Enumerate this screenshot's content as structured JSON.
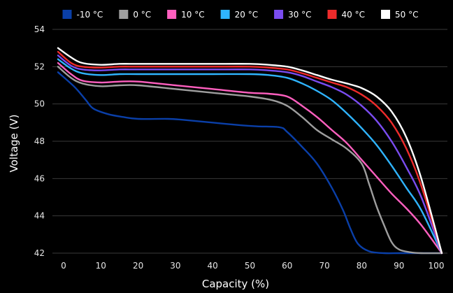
{
  "chart_data": {
    "type": "line",
    "title": "",
    "xlabel": "Capacity (%)",
    "ylabel": "Voltage (V)",
    "xlim": [
      -3,
      103
    ],
    "ylim": [
      42,
      54
    ],
    "xticks": [
      0,
      10,
      20,
      30,
      40,
      50,
      60,
      70,
      80,
      90,
      100
    ],
    "yticks": [
      42,
      44,
      46,
      48,
      50,
      52,
      54
    ],
    "grid": "horizontal",
    "legend_position": "top",
    "background": "#000000",
    "series": [
      {
        "name": "-10 °C",
        "color": "#0a3fa8",
        "x": [
          -1.5,
          3,
          6,
          8,
          12,
          16,
          20,
          28,
          32,
          40,
          48,
          52,
          58,
          60,
          64,
          68,
          72,
          75,
          77,
          79,
          82,
          86,
          90,
          95,
          98,
          101.5
        ],
        "y": [
          51.7,
          50.9,
          50.2,
          49.75,
          49.45,
          49.3,
          49.2,
          49.2,
          49.15,
          49.0,
          48.85,
          48.8,
          48.75,
          48.5,
          47.7,
          46.8,
          45.5,
          44.3,
          43.3,
          42.5,
          42.1,
          42.0,
          42.0,
          42.0,
          42.0,
          42.0
        ]
      },
      {
        "name": "0 °C",
        "color": "#9e9e9e",
        "x": [
          -1.5,
          2,
          5,
          10,
          15,
          20,
          30,
          40,
          50,
          56,
          60,
          64,
          68,
          72,
          76,
          80,
          82,
          84,
          86,
          88,
          90,
          93,
          96,
          101.5
        ],
        "y": [
          52.0,
          51.4,
          51.1,
          50.95,
          51.0,
          51.0,
          50.8,
          50.6,
          50.4,
          50.2,
          49.9,
          49.3,
          48.6,
          48.1,
          47.6,
          46.8,
          45.7,
          44.5,
          43.5,
          42.6,
          42.2,
          42.05,
          42.0,
          42.0
        ]
      },
      {
        "name": "10 °C",
        "color": "#ff5fbf",
        "x": [
          -1.5,
          2,
          5,
          10,
          15,
          20,
          30,
          40,
          50,
          55,
          60,
          64,
          68,
          72,
          76,
          80,
          84,
          88,
          92,
          96,
          101.5
        ],
        "y": [
          52.2,
          51.6,
          51.25,
          51.15,
          51.2,
          51.2,
          51.0,
          50.8,
          50.6,
          50.55,
          50.4,
          49.9,
          49.3,
          48.6,
          47.9,
          47.0,
          46.1,
          45.2,
          44.4,
          43.5,
          42.0
        ]
      },
      {
        "name": "20 °C",
        "color": "#2fb4ff",
        "x": [
          -1.5,
          2,
          5,
          10,
          15,
          20,
          30,
          40,
          50,
          55,
          60,
          64,
          68,
          72,
          76,
          80,
          84,
          88,
          92,
          96,
          101.5
        ],
        "y": [
          52.4,
          51.9,
          51.65,
          51.55,
          51.6,
          51.6,
          51.6,
          51.6,
          51.6,
          51.55,
          51.4,
          51.1,
          50.7,
          50.2,
          49.5,
          48.7,
          47.8,
          46.7,
          45.5,
          44.3,
          42.0
        ]
      },
      {
        "name": "30 °C",
        "color": "#7a4cf0",
        "x": [
          -1.5,
          2,
          5,
          10,
          15,
          20,
          30,
          40,
          50,
          55,
          60,
          64,
          68,
          72,
          76,
          80,
          84,
          88,
          92,
          96,
          101.5
        ],
        "y": [
          52.6,
          52.05,
          51.85,
          51.8,
          51.85,
          51.85,
          51.85,
          51.85,
          51.85,
          51.8,
          51.7,
          51.5,
          51.2,
          50.9,
          50.5,
          49.9,
          49.1,
          48.0,
          46.6,
          45.0,
          42.0
        ]
      },
      {
        "name": "40 °C",
        "color": "#ee2b2b",
        "x": [
          -1.5,
          2,
          5,
          10,
          15,
          20,
          30,
          40,
          50,
          55,
          60,
          64,
          68,
          72,
          76,
          80,
          84,
          88,
          92,
          96,
          101.5
        ],
        "y": [
          52.8,
          52.2,
          52.0,
          51.95,
          52.0,
          52.0,
          52.0,
          52.0,
          52.0,
          51.95,
          51.85,
          51.65,
          51.4,
          51.15,
          50.9,
          50.5,
          49.9,
          49.0,
          47.6,
          45.6,
          42.0
        ]
      },
      {
        "name": "50 °C",
        "color": "#ffffff",
        "x": [
          -1.5,
          2,
          5,
          10,
          15,
          20,
          30,
          40,
          50,
          55,
          60,
          64,
          68,
          72,
          76,
          80,
          84,
          88,
          92,
          96,
          101.5
        ],
        "y": [
          53.0,
          52.5,
          52.2,
          52.1,
          52.15,
          52.15,
          52.15,
          52.15,
          52.15,
          52.1,
          52.0,
          51.8,
          51.55,
          51.3,
          51.1,
          50.85,
          50.4,
          49.6,
          48.2,
          46.0,
          42.0
        ]
      }
    ]
  }
}
